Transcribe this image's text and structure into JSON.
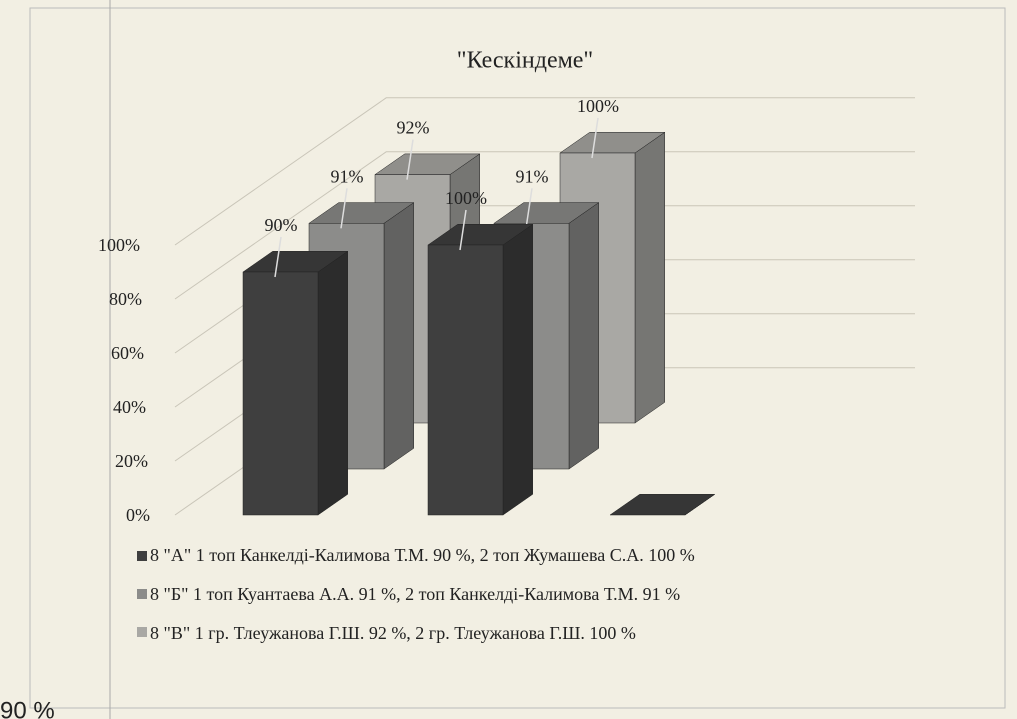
{
  "chart_data": {
    "type": "bar3d",
    "title": "\"Кескіндеме\"",
    "categories": [
      null,
      null,
      null
    ],
    "series": [
      {
        "name": "8 \"А\" 1 топ Канкелді-Калимова Т.М. 90 %, 2 топ Жумашева С.А. 100 %",
        "color": "#3f3f3f",
        "values": [
          90,
          100,
          0
        ],
        "value_labels": [
          "90%",
          "100%",
          null
        ]
      },
      {
        "name": "8 \"Б\" 1 топ Куантаева А.А. 91 %, 2 топ Канкелді-Калимова Т.М. 91 %",
        "color": "#8c8c8a",
        "values": [
          91,
          91,
          null
        ],
        "value_labels": [
          "91%",
          "91%",
          null
        ]
      },
      {
        "name": "8 \"В\" 1 гр. Тлеужанова Г.Ш. 92 %, 2 гр. Тлеужанова Г.Ш. 100 %",
        "color": "#a9a8a4",
        "values": [
          92,
          100,
          null
        ],
        "value_labels": [
          "92%",
          "100%",
          null
        ]
      }
    ],
    "ylim": [
      0,
      100
    ],
    "yticks": [
      {
        "value": 0,
        "label": "0%"
      },
      {
        "value": 20,
        "label": "20%"
      },
      {
        "value": 40,
        "label": "40%"
      },
      {
        "value": 60,
        "label": "60%"
      },
      {
        "value": 80,
        "label": "80%"
      },
      {
        "value": 100,
        "label": "100%"
      }
    ],
    "grid": true
  },
  "footer_text": "90 %"
}
